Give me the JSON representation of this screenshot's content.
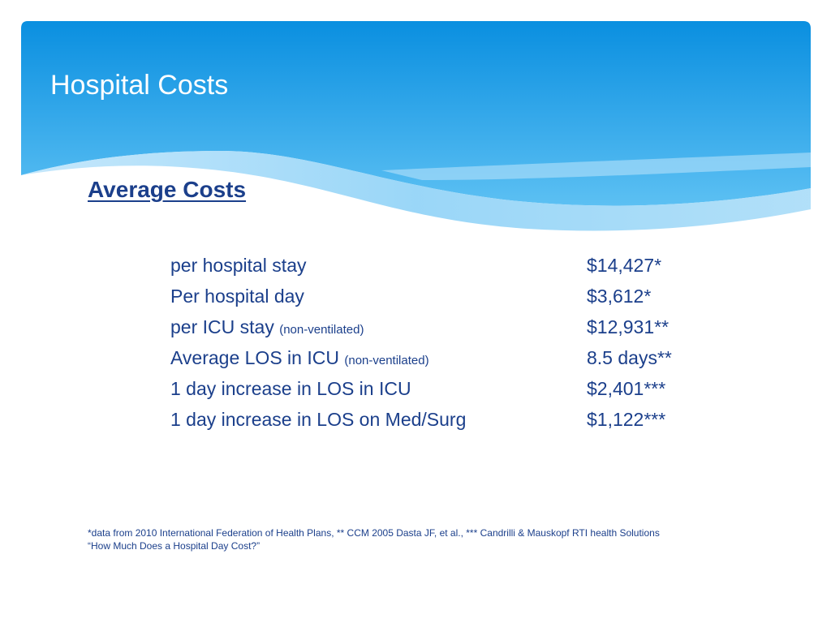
{
  "slide": {
    "title": "Hospital Costs",
    "subheading": "Average Costs",
    "rows": [
      {
        "label": "per hospital stay",
        "note": "",
        "value": "$14,427*"
      },
      {
        "label": "Per hospital day",
        "note": "",
        "value": "$3,612*"
      },
      {
        "label": "per ICU stay",
        "note": "(non-ventilated)",
        "value": "$12,931**"
      },
      {
        "label": "Average LOS in ICU",
        "note": "(non-ventilated)",
        "value": "8.5 days**"
      },
      {
        "label": "1 day increase in LOS in ICU",
        "note": "",
        "value": "$2,401***"
      },
      {
        "label": "1 day increase in LOS on Med/Surg",
        "note": "",
        "value": "$1,122***"
      }
    ],
    "footnote_line1": "*data from 2010 International Federation of Health Plans, ** CCM 2005 Dasta JF, et al., *** Candrilli & Mauskopf RTI health Solutions",
    "footnote_line2": "“How Much Does a Hospital Day Cost?”",
    "colors": {
      "banner_top": "#0a8fe0",
      "banner_bottom": "#5cc0f3",
      "text_accent": "#1b3f8b",
      "title_text": "#ffffff"
    }
  }
}
